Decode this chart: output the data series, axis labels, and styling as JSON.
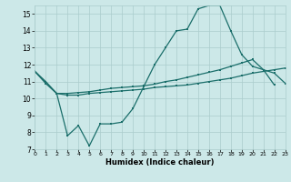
{
  "xlabel": "Humidex (Indice chaleur)",
  "bg_color": "#cce8e8",
  "line_color": "#1a6e6a",
  "grid_color": "#aacccc",
  "xlim": [
    0,
    23
  ],
  "ylim": [
    7,
    15.5
  ],
  "yticks": [
    7,
    8,
    9,
    10,
    11,
    12,
    13,
    14,
    15
  ],
  "xticks": [
    0,
    1,
    2,
    3,
    4,
    5,
    6,
    7,
    8,
    9,
    10,
    11,
    12,
    13,
    14,
    15,
    16,
    17,
    18,
    19,
    20,
    21,
    22,
    23
  ],
  "line1_x": [
    0,
    1,
    2,
    3,
    4,
    5,
    6,
    7,
    8,
    9,
    10,
    11,
    12,
    13,
    14,
    15,
    16,
    17,
    18,
    19,
    20,
    21,
    22
  ],
  "line1_y": [
    11.6,
    11.0,
    10.3,
    7.8,
    8.4,
    7.2,
    8.5,
    8.5,
    8.6,
    9.4,
    10.7,
    12.0,
    13.0,
    14.0,
    14.1,
    15.3,
    15.5,
    15.5,
    14.0,
    12.6,
    11.9,
    11.7,
    10.8
  ],
  "line2_x": [
    0,
    1,
    2,
    3,
    4,
    5,
    6,
    7,
    8,
    9,
    10,
    11,
    12,
    13,
    14,
    15,
    16,
    17,
    18,
    19,
    20,
    21,
    22,
    23
  ],
  "line2_y": [
    11.6,
    10.9,
    10.3,
    10.3,
    10.35,
    10.4,
    10.5,
    10.6,
    10.65,
    10.7,
    10.75,
    10.85,
    11.0,
    11.1,
    11.25,
    11.4,
    11.55,
    11.7,
    11.9,
    12.1,
    12.3,
    11.7,
    11.5,
    10.9
  ],
  "line3_x": [
    0,
    1,
    2,
    3,
    4,
    5,
    6,
    7,
    8,
    9,
    10,
    11,
    12,
    13,
    14,
    15,
    16,
    17,
    18,
    19,
    20,
    21,
    22,
    23
  ],
  "line3_y": [
    11.6,
    10.9,
    10.3,
    10.2,
    10.2,
    10.3,
    10.35,
    10.4,
    10.45,
    10.5,
    10.55,
    10.65,
    10.7,
    10.75,
    10.8,
    10.9,
    11.0,
    11.1,
    11.2,
    11.35,
    11.5,
    11.6,
    11.7,
    11.8
  ]
}
